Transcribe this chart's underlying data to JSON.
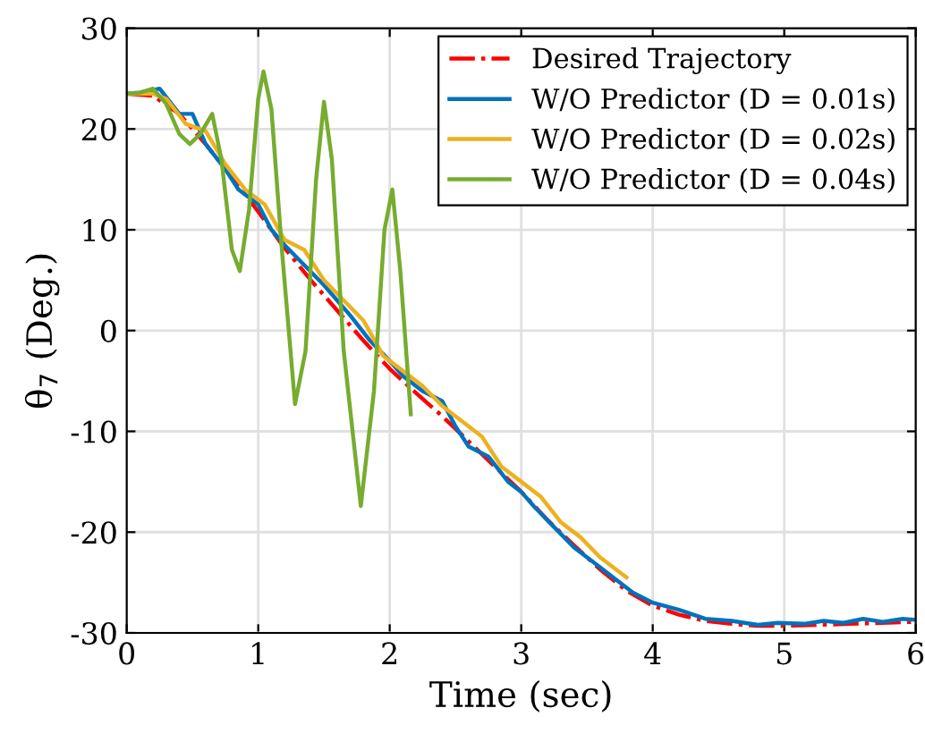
{
  "chart_data": {
    "type": "line",
    "xlabel": "Time (sec)",
    "ylabel": "θ$_{7}$ (Deg.)",
    "xlim": [
      0,
      6
    ],
    "ylim": [
      -30,
      30
    ],
    "xticks": [
      0,
      1,
      2,
      3,
      4,
      5,
      6
    ],
    "yticks": [
      -30,
      -20,
      -10,
      0,
      10,
      20,
      30
    ],
    "grid": true,
    "legend": "top right",
    "series": [
      {
        "name": "Desired Trajectory",
        "color": "#ff0000",
        "line_style": "dashdot",
        "x": [
          0,
          0.2,
          0.4,
          0.6,
          0.8,
          1,
          1.2,
          1.4,
          1.6,
          1.8,
          2,
          2.2,
          2.4,
          2.6,
          2.8,
          3,
          3.2,
          3.4,
          3.6,
          3.8,
          4,
          4.2,
          4.4,
          4.6,
          4.8,
          5,
          5.5,
          6
        ],
        "values": [
          23.5,
          23.3,
          21.5,
          18.5,
          15.2,
          11.8,
          8.2,
          5,
          2,
          -1,
          -3.8,
          -6.2,
          -8.5,
          -11,
          -13.5,
          -16,
          -18.8,
          -21.3,
          -23.7,
          -25.8,
          -27.3,
          -28.2,
          -28.8,
          -29.1,
          -29.3,
          -29.3,
          -29.1,
          -28.9
        ]
      },
      {
        "name": "W/O Predictor (D = 0.01s)",
        "color": "#0072bd",
        "x": [
          0,
          0.1,
          0.25,
          0.4,
          0.5,
          0.6,
          0.75,
          0.85,
          1,
          1.1,
          1.2,
          1.35,
          1.5,
          1.6,
          1.7,
          1.85,
          2,
          2.1,
          2.25,
          2.4,
          2.5,
          2.6,
          2.75,
          2.9,
          3,
          3.1,
          3.25,
          3.4,
          3.55,
          3.7,
          3.85,
          4,
          4.2,
          4.4,
          4.6,
          4.8,
          4.95,
          5.15,
          5.3,
          5.45,
          5.6,
          5.75,
          5.9,
          6
        ],
        "values": [
          23.5,
          23.6,
          24,
          21.5,
          21.5,
          18.5,
          16,
          14,
          12.5,
          10,
          8.5,
          6.5,
          4.5,
          3,
          1.5,
          -1,
          -3,
          -4.5,
          -6,
          -7,
          -9.5,
          -11.5,
          -12.5,
          -15,
          -16,
          -17.5,
          -19.5,
          -21.5,
          -23,
          -24.5,
          -26,
          -27,
          -27.7,
          -28.6,
          -28.8,
          -29.2,
          -29,
          -29.1,
          -28.8,
          -29,
          -28.6,
          -28.9,
          -28.6,
          -28.7
        ]
      },
      {
        "name": "W/O Predictor (D = 0.02s)",
        "color": "#edb120",
        "x": [
          0,
          0.2,
          0.3,
          0.45,
          0.6,
          0.75,
          0.9,
          1.05,
          1.2,
          1.35,
          1.5,
          1.65,
          1.8,
          1.95,
          2.1,
          2.25,
          2.4,
          2.55,
          2.7,
          2.85,
          3,
          3.15,
          3.3,
          3.45,
          3.6,
          3.75,
          3.8
        ],
        "values": [
          23.5,
          23.5,
          23,
          20.5,
          19.8,
          16.5,
          14,
          12.5,
          9,
          8,
          5,
          3,
          1,
          -2.5,
          -4,
          -5.5,
          -7.5,
          -9,
          -10.5,
          -13.5,
          -15,
          -16.5,
          -19,
          -20.5,
          -22.5,
          -24,
          -24.5
        ]
      },
      {
        "name": "W/O Predictor (D = 0.04s)",
        "color": "#77ac30",
        "x": [
          0,
          0.1,
          0.2,
          0.3,
          0.4,
          0.48,
          0.56,
          0.65,
          0.72,
          0.8,
          0.86,
          0.93,
          1,
          1.04,
          1.1,
          1.18,
          1.28,
          1.36,
          1.44,
          1.5,
          1.56,
          1.65,
          1.78,
          1.88,
          1.96,
          2.02,
          2.08,
          2.16
        ],
        "values": [
          23.5,
          23.6,
          24,
          22.5,
          19.5,
          18.5,
          19.5,
          21.5,
          17,
          8,
          5.9,
          12,
          23,
          25.7,
          22,
          8,
          -7.3,
          -2,
          15,
          22.7,
          17,
          -2,
          -17.4,
          -6,
          10,
          14,
          6,
          -8.3
        ]
      }
    ]
  }
}
